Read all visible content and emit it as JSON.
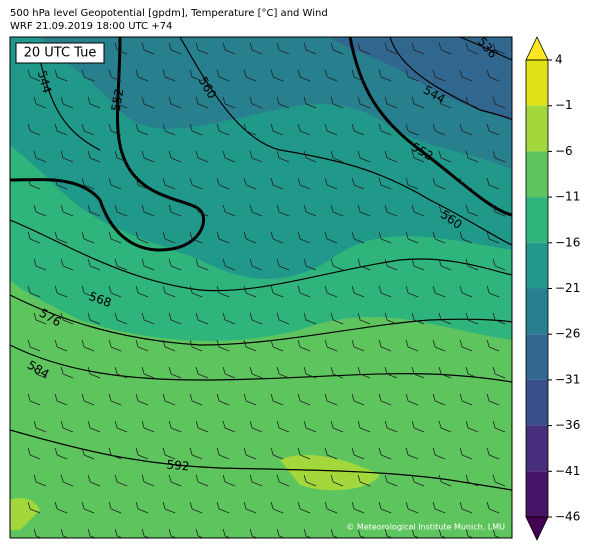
{
  "header": {
    "title": "500 hPa level Geopotential [gpdm], Temperature [°C] and Wind",
    "subtitle": "WRF 21.09.2019 18:00 UTC +74"
  },
  "map": {
    "time_label": "20 UTC Tue",
    "contour_labels": [
      536,
      544,
      544,
      552,
      552,
      560,
      560,
      568,
      576,
      584,
      592
    ],
    "credit": "© Meteorological Institute Munich, LMU"
  },
  "colorbar": {
    "ticks": [
      4,
      {
        "value": -1,
        "label": "−1"
      },
      {
        "value": -6,
        "label": "−6"
      },
      {
        "value": -11,
        "label": "−11"
      },
      {
        "value": -16,
        "label": "−16"
      },
      {
        "value": -21,
        "label": "−21"
      },
      {
        "value": -26,
        "label": "−26"
      },
      {
        "value": -31,
        "label": "−31"
      },
      {
        "value": -36,
        "label": "−36"
      },
      {
        "value": -41,
        "label": "−41"
      },
      {
        "value": -46,
        "label": "−46"
      }
    ],
    "colors": [
      "#dfe318",
      "#a2d83c",
      "#5ec55e",
      "#2fb47c",
      "#21998a",
      "#28808e",
      "#31678e",
      "#3b4f8a",
      "#472f7d",
      "#481467"
    ],
    "over_color": "#fde725",
    "under_color": "#440154"
  }
}
